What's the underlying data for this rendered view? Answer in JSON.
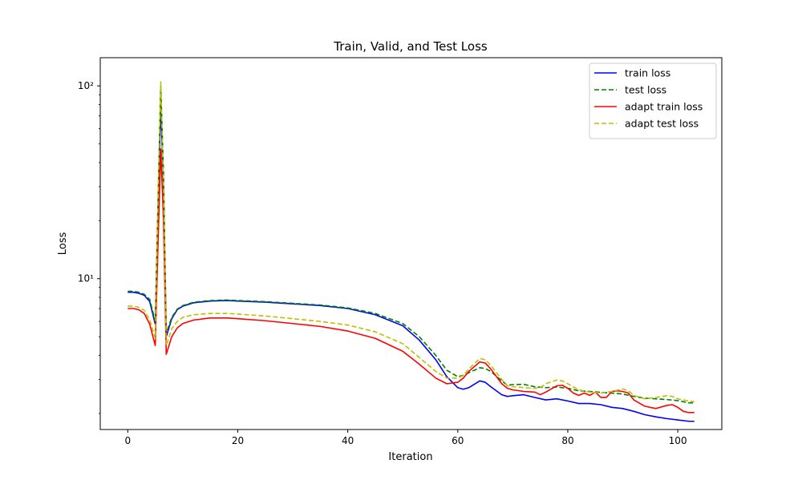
{
  "chart_data": {
    "type": "line",
    "title": "Train, Valid, and Test Loss",
    "xlabel": "Iteration",
    "ylabel": "Loss",
    "y_scale": "log",
    "xlim": [
      -5,
      108
    ],
    "ylim": [
      1.65,
      140
    ],
    "x_ticks": [
      0,
      20,
      40,
      60,
      80,
      100
    ],
    "x_tick_labels": [
      "0",
      "20",
      "40",
      "60",
      "80",
      "100"
    ],
    "y_ticks": [
      10,
      100
    ],
    "y_tick_labels": [
      "10¹",
      "10²"
    ],
    "grid": false,
    "legend_position": "top-right",
    "series": [
      {
        "name": "train loss",
        "color": "#0000ff",
        "dash": "solid",
        "points": [
          [
            0,
            8.5
          ],
          [
            1,
            8.5
          ],
          [
            2,
            8.4
          ],
          [
            3,
            8.2
          ],
          [
            4,
            7.6
          ],
          [
            5,
            5.8
          ],
          [
            5.5,
            20
          ],
          [
            6,
            80
          ],
          [
            6.5,
            30
          ],
          [
            7,
            5.0
          ],
          [
            8,
            6.2
          ],
          [
            9,
            6.9
          ],
          [
            10,
            7.2
          ],
          [
            12,
            7.5
          ],
          [
            15,
            7.65
          ],
          [
            18,
            7.7
          ],
          [
            20,
            7.65
          ],
          [
            25,
            7.55
          ],
          [
            30,
            7.4
          ],
          [
            35,
            7.25
          ],
          [
            40,
            7.0
          ],
          [
            45,
            6.5
          ],
          [
            50,
            5.7
          ],
          [
            53,
            4.8
          ],
          [
            56,
            3.8
          ],
          [
            58,
            3.1
          ],
          [
            60,
            2.72
          ],
          [
            61,
            2.67
          ],
          [
            62,
            2.72
          ],
          [
            64,
            2.95
          ],
          [
            65,
            2.9
          ],
          [
            66,
            2.75
          ],
          [
            68,
            2.5
          ],
          [
            69,
            2.45
          ],
          [
            70,
            2.47
          ],
          [
            72,
            2.5
          ],
          [
            74,
            2.42
          ],
          [
            76,
            2.35
          ],
          [
            78,
            2.38
          ],
          [
            80,
            2.32
          ],
          [
            82,
            2.25
          ],
          [
            84,
            2.25
          ],
          [
            86,
            2.22
          ],
          [
            88,
            2.15
          ],
          [
            90,
            2.12
          ],
          [
            92,
            2.05
          ],
          [
            94,
            1.97
          ],
          [
            96,
            1.92
          ],
          [
            98,
            1.88
          ],
          [
            100,
            1.85
          ],
          [
            102,
            1.82
          ],
          [
            103,
            1.82
          ]
        ]
      },
      {
        "name": "test loss",
        "color": "#008000",
        "dash": "dashed",
        "points": [
          [
            0,
            8.6
          ],
          [
            1,
            8.6
          ],
          [
            2,
            8.5
          ],
          [
            3,
            8.3
          ],
          [
            4,
            7.8
          ],
          [
            5,
            6.0
          ],
          [
            5.5,
            25
          ],
          [
            6,
            100
          ],
          [
            6.5,
            35
          ],
          [
            7,
            5.2
          ],
          [
            8,
            6.3
          ],
          [
            9,
            6.95
          ],
          [
            10,
            7.25
          ],
          [
            12,
            7.55
          ],
          [
            15,
            7.7
          ],
          [
            18,
            7.75
          ],
          [
            20,
            7.7
          ],
          [
            25,
            7.6
          ],
          [
            30,
            7.45
          ],
          [
            35,
            7.3
          ],
          [
            40,
            7.05
          ],
          [
            45,
            6.6
          ],
          [
            50,
            5.85
          ],
          [
            53,
            5.0
          ],
          [
            56,
            4.0
          ],
          [
            58,
            3.35
          ],
          [
            60,
            3.1
          ],
          [
            61,
            3.15
          ],
          [
            62,
            3.25
          ],
          [
            64,
            3.45
          ],
          [
            65,
            3.42
          ],
          [
            66,
            3.3
          ],
          [
            68,
            2.95
          ],
          [
            69,
            2.8
          ],
          [
            70,
            2.82
          ],
          [
            72,
            2.83
          ],
          [
            74,
            2.75
          ],
          [
            76,
            2.72
          ],
          [
            78,
            2.74
          ],
          [
            80,
            2.7
          ],
          [
            82,
            2.62
          ],
          [
            84,
            2.6
          ],
          [
            86,
            2.57
          ],
          [
            88,
            2.55
          ],
          [
            90,
            2.52
          ],
          [
            92,
            2.45
          ],
          [
            94,
            2.4
          ],
          [
            96,
            2.38
          ],
          [
            98,
            2.36
          ],
          [
            100,
            2.33
          ],
          [
            102,
            2.27
          ],
          [
            103,
            2.27
          ]
        ]
      },
      {
        "name": "adapt train loss",
        "color": "#ff0000",
        "dash": "solid",
        "points": [
          [
            0,
            7.0
          ],
          [
            1,
            7.0
          ],
          [
            2,
            6.9
          ],
          [
            3,
            6.6
          ],
          [
            4,
            5.8
          ],
          [
            5,
            4.5
          ],
          [
            5.5,
            15
          ],
          [
            6,
            47
          ],
          [
            6.5,
            20
          ],
          [
            7,
            4.05
          ],
          [
            8,
            5.0
          ],
          [
            9,
            5.55
          ],
          [
            10,
            5.85
          ],
          [
            12,
            6.1
          ],
          [
            15,
            6.25
          ],
          [
            18,
            6.25
          ],
          [
            20,
            6.2
          ],
          [
            25,
            6.05
          ],
          [
            30,
            5.85
          ],
          [
            35,
            5.65
          ],
          [
            40,
            5.35
          ],
          [
            45,
            4.9
          ],
          [
            50,
            4.2
          ],
          [
            53,
            3.6
          ],
          [
            56,
            3.05
          ],
          [
            58,
            2.85
          ],
          [
            60,
            2.9
          ],
          [
            61,
            3.05
          ],
          [
            62,
            3.3
          ],
          [
            64,
            3.7
          ],
          [
            65,
            3.65
          ],
          [
            66,
            3.4
          ],
          [
            68,
            2.85
          ],
          [
            69,
            2.7
          ],
          [
            70,
            2.65
          ],
          [
            72,
            2.6
          ],
          [
            74,
            2.58
          ],
          [
            75,
            2.5
          ],
          [
            76,
            2.58
          ],
          [
            78,
            2.78
          ],
          [
            79,
            2.8
          ],
          [
            80,
            2.7
          ],
          [
            81,
            2.55
          ],
          [
            82,
            2.48
          ],
          [
            83,
            2.55
          ],
          [
            84,
            2.48
          ],
          [
            85,
            2.58
          ],
          [
            86,
            2.42
          ],
          [
            87,
            2.42
          ],
          [
            88,
            2.6
          ],
          [
            89,
            2.62
          ],
          [
            90,
            2.6
          ],
          [
            91,
            2.55
          ],
          [
            92,
            2.35
          ],
          [
            94,
            2.18
          ],
          [
            96,
            2.12
          ],
          [
            98,
            2.2
          ],
          [
            99,
            2.22
          ],
          [
            100,
            2.15
          ],
          [
            101,
            2.05
          ],
          [
            102,
            2.02
          ],
          [
            103,
            2.02
          ]
        ]
      },
      {
        "name": "adapt test loss",
        "color": "#bfbf00",
        "dash": "dashed",
        "points": [
          [
            0,
            7.2
          ],
          [
            1,
            7.2
          ],
          [
            2,
            7.1
          ],
          [
            3,
            6.85
          ],
          [
            4,
            6.1
          ],
          [
            5,
            4.9
          ],
          [
            5.5,
            25
          ],
          [
            6,
            105
          ],
          [
            6.5,
            30
          ],
          [
            7,
            4.5
          ],
          [
            8,
            5.5
          ],
          [
            9,
            6.0
          ],
          [
            10,
            6.3
          ],
          [
            12,
            6.5
          ],
          [
            15,
            6.6
          ],
          [
            18,
            6.6
          ],
          [
            20,
            6.55
          ],
          [
            25,
            6.4
          ],
          [
            30,
            6.2
          ],
          [
            35,
            6.0
          ],
          [
            40,
            5.75
          ],
          [
            45,
            5.3
          ],
          [
            50,
            4.6
          ],
          [
            53,
            3.9
          ],
          [
            56,
            3.3
          ],
          [
            58,
            3.05
          ],
          [
            60,
            3.05
          ],
          [
            61,
            3.15
          ],
          [
            62,
            3.4
          ],
          [
            64,
            3.85
          ],
          [
            65,
            3.8
          ],
          [
            66,
            3.55
          ],
          [
            68,
            3.0
          ],
          [
            69,
            2.78
          ],
          [
            70,
            2.75
          ],
          [
            72,
            2.72
          ],
          [
            74,
            2.7
          ],
          [
            75,
            2.72
          ],
          [
            76,
            2.85
          ],
          [
            78,
            2.98
          ],
          [
            79,
            2.95
          ],
          [
            80,
            2.85
          ],
          [
            82,
            2.65
          ],
          [
            84,
            2.58
          ],
          [
            86,
            2.55
          ],
          [
            88,
            2.6
          ],
          [
            90,
            2.68
          ],
          [
            91,
            2.62
          ],
          [
            92,
            2.48
          ],
          [
            94,
            2.38
          ],
          [
            96,
            2.42
          ],
          [
            98,
            2.47
          ],
          [
            99,
            2.45
          ],
          [
            100,
            2.38
          ],
          [
            102,
            2.32
          ],
          [
            103,
            2.3
          ]
        ]
      }
    ]
  }
}
